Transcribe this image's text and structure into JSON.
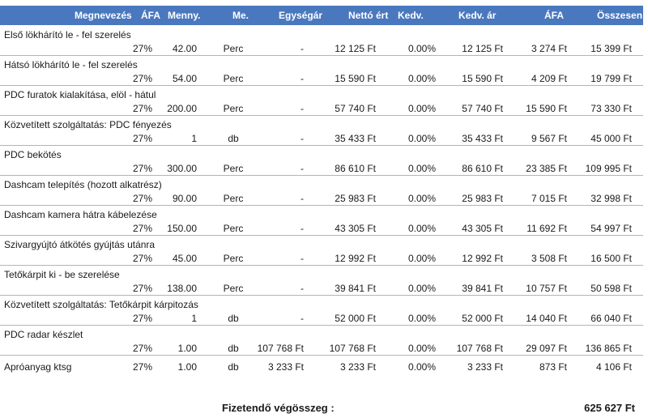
{
  "headers": {
    "name": "Megnevezés",
    "vat_rate": "ÁFA",
    "qty": "Menny.",
    "unit": "Me.",
    "unit_price": "Egységár",
    "net": "Nettó ért",
    "discount": "Kedv.",
    "disc_price": "Kedv. ár",
    "vat": "ÁFA",
    "total": "Összesen"
  },
  "items": [
    {
      "name": "Első lökhárító le - fel szerelés",
      "vat_rate": "27%",
      "qty": "42.00",
      "unit": "Perc",
      "unit_price": "-",
      "net": "12 125 Ft",
      "discount": "0.00%",
      "disc_price": "12 125 Ft",
      "vat": "3 274 Ft",
      "total": "15 399 Ft"
    },
    {
      "name": "Hátsó lökhárító le - fel szerelés",
      "vat_rate": "27%",
      "qty": "54.00",
      "unit": "Perc",
      "unit_price": "-",
      "net": "15 590 Ft",
      "discount": "0.00%",
      "disc_price": "15 590 Ft",
      "vat": "4 209 Ft",
      "total": "19 799 Ft"
    },
    {
      "name": "PDC furatok kialakítása, elöl - hátul",
      "vat_rate": "27%",
      "qty": "200.00",
      "unit": "Perc",
      "unit_price": "-",
      "net": "57 740 Ft",
      "discount": "0.00%",
      "disc_price": "57 740 Ft",
      "vat": "15 590 Ft",
      "total": "73 330 Ft"
    },
    {
      "name": "Közvetített szolgáltatás: PDC fényezés",
      "vat_rate": "27%",
      "qty": "1",
      "unit": "db",
      "unit_price": "-",
      "net": "35 433 Ft",
      "discount": "0.00%",
      "disc_price": "35 433 Ft",
      "vat": "9 567 Ft",
      "total": "45 000 Ft"
    },
    {
      "name": "PDC bekötés",
      "vat_rate": "27%",
      "qty": "300.00",
      "unit": "Perc",
      "unit_price": "-",
      "net": "86 610 Ft",
      "discount": "0.00%",
      "disc_price": "86 610 Ft",
      "vat": "23 385 Ft",
      "total": "109 995 Ft"
    },
    {
      "name": "Dashcam telepítés (hozott alkatrész)",
      "vat_rate": "27%",
      "qty": "90.00",
      "unit": "Perc",
      "unit_price": "-",
      "net": "25 983 Ft",
      "discount": "0.00%",
      "disc_price": "25 983 Ft",
      "vat": "7 015 Ft",
      "total": "32 998 Ft"
    },
    {
      "name": "Dashcam kamera hátra kábelezése",
      "vat_rate": "27%",
      "qty": "150.00",
      "unit": "Perc",
      "unit_price": "-",
      "net": "43 305 Ft",
      "discount": "0.00%",
      "disc_price": "43 305 Ft",
      "vat": "11 692 Ft",
      "total": "54 997 Ft"
    },
    {
      "name": "Szivargyújtó átkötés gyújtás utánra",
      "vat_rate": "27%",
      "qty": "45.00",
      "unit": "Perc",
      "unit_price": "-",
      "net": "12 992 Ft",
      "discount": "0.00%",
      "disc_price": "12 992 Ft",
      "vat": "3 508 Ft",
      "total": "16 500 Ft"
    },
    {
      "name": "Tetőkárpit ki - be szerelése",
      "vat_rate": "27%",
      "qty": "138.00",
      "unit": "Perc",
      "unit_price": "-",
      "net": "39 841 Ft",
      "discount": "0.00%",
      "disc_price": "39 841 Ft",
      "vat": "10 757 Ft",
      "total": "50 598 Ft"
    },
    {
      "name": "Közvetített szolgáltatás: Tetőkárpit kárpitozás",
      "vat_rate": "27%",
      "qty": "1",
      "unit": "db",
      "unit_price": "-",
      "net": "52 000 Ft",
      "discount": "0.00%",
      "disc_price": "52 000 Ft",
      "vat": "14 040 Ft",
      "total": "66 040 Ft"
    },
    {
      "name": "PDC radar készlet",
      "vat_rate": "27%",
      "qty": "1.00",
      "unit": "db",
      "unit_price": "107 768 Ft",
      "net": "107 768 Ft",
      "discount": "0.00%",
      "disc_price": "107 768 Ft",
      "vat": "29 097 Ft",
      "total": "136 865 Ft"
    },
    {
      "name": "Apróanyag ktsg",
      "vat_rate": "27%",
      "qty": "1.00",
      "unit": "db",
      "unit_price": "3 233 Ft",
      "net": "3 233 Ft",
      "discount": "0.00%",
      "disc_price": "3 233 Ft",
      "vat": "873 Ft",
      "total": "4 106 Ft",
      "single_line": true
    }
  ],
  "total": {
    "label": "Fizetendő végösszeg :",
    "value": "625 627 Ft"
  }
}
